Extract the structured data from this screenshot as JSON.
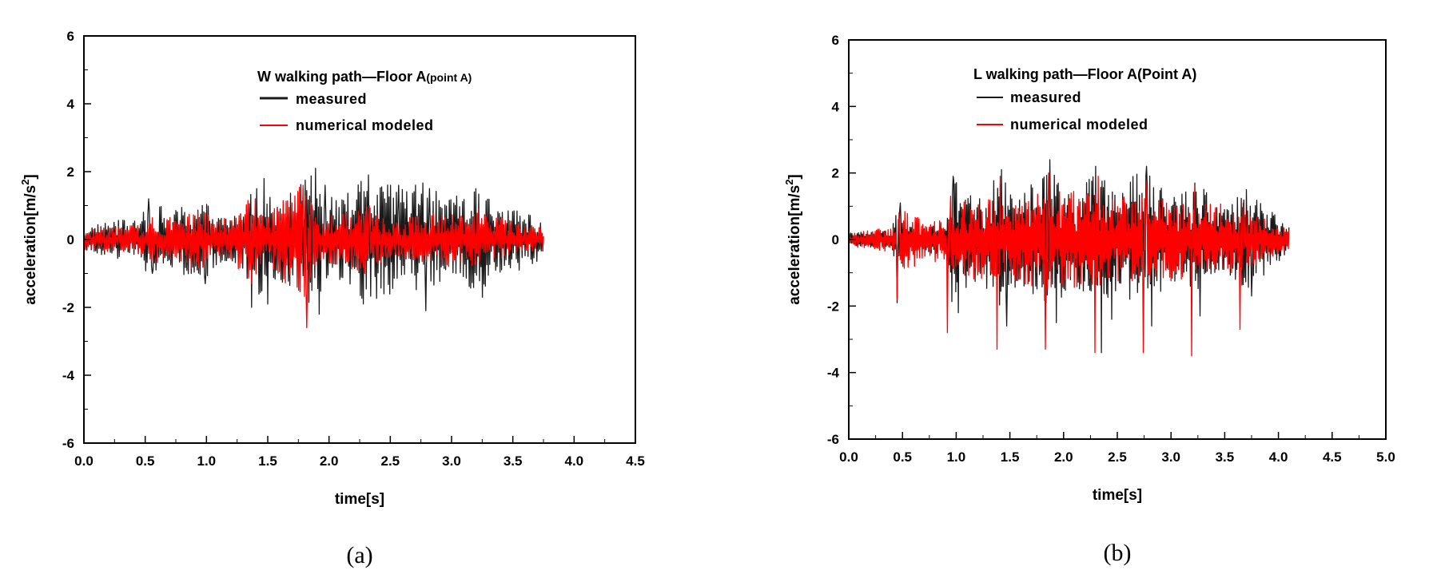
{
  "chart_data": [
    {
      "type": "line",
      "caption": "(a)",
      "legend_title_main": "W walking path—Floor A",
      "legend_title_suffix": "(point A)",
      "xlabel": "time[s]",
      "ylabel": "acceleration[m/s",
      "ylabel_sup": "2",
      "ylabel_close": "]",
      "xlim": [
        0,
        4.5
      ],
      "ylim": [
        -6,
        6
      ],
      "xticks": [
        "0.0",
        "0.5",
        "1.0",
        "1.5",
        "2.0",
        "2.5",
        "3.0",
        "3.5",
        "4.0",
        "4.5"
      ],
      "yticks": [
        "-6",
        "-4",
        "-2",
        "0",
        "2",
        "4",
        "6"
      ],
      "legend_position": "top-right",
      "duration": 3.75,
      "series": [
        {
          "name": "measured",
          "color": "#1a1a1a",
          "envelope": [
            [
              0,
              0.35
            ],
            [
              0.2,
              0.55
            ],
            [
              0.45,
              0.6
            ],
            [
              0.55,
              1.2
            ],
            [
              0.7,
              0.8
            ],
            [
              0.95,
              1.3
            ],
            [
              1.1,
              0.7
            ],
            [
              1.3,
              0.9
            ],
            [
              1.4,
              1.8
            ],
            [
              1.55,
              1.2
            ],
            [
              1.7,
              1.4
            ],
            [
              1.9,
              2.1
            ],
            [
              2.1,
              1.2
            ],
            [
              2.3,
              1.9
            ],
            [
              2.5,
              1.6
            ],
            [
              2.8,
              1.8
            ],
            [
              2.95,
              1.1
            ],
            [
              3.2,
              1.6
            ],
            [
              3.45,
              0.9
            ],
            [
              3.7,
              0.8
            ],
            [
              3.75,
              0.3
            ]
          ],
          "peaks": [
            [
              0.53,
              1.2
            ],
            [
              0.56,
              -1.0
            ],
            [
              0.99,
              -1.3
            ],
            [
              1.37,
              -2.0
            ],
            [
              1.41,
              1.5
            ],
            [
              1.47,
              1.8
            ],
            [
              1.5,
              -1.9
            ],
            [
              1.86,
              -1.5
            ],
            [
              1.89,
              2.1
            ],
            [
              1.92,
              -2.2
            ],
            [
              1.97,
              1.6
            ],
            [
              2.28,
              -1.9
            ],
            [
              2.32,
              1.9
            ],
            [
              2.45,
              -1.6
            ],
            [
              2.57,
              1.6
            ],
            [
              2.79,
              -2.1
            ],
            [
              2.82,
              1.5
            ],
            [
              3.2,
              1.5
            ],
            [
              3.25,
              -1.7
            ],
            [
              3.55,
              -0.9
            ]
          ]
        },
        {
          "name": "numerical modeled",
          "color": "#ff0000",
          "envelope": [
            [
              0,
              0.3
            ],
            [
              0.5,
              0.45
            ],
            [
              0.55,
              0.7
            ],
            [
              0.95,
              0.9
            ],
            [
              1.1,
              0.5
            ],
            [
              1.35,
              1.2
            ],
            [
              1.5,
              0.8
            ],
            [
              1.8,
              1.8
            ],
            [
              1.9,
              0.6
            ],
            [
              2.3,
              1.0
            ],
            [
              2.5,
              0.5
            ],
            [
              2.8,
              0.8
            ],
            [
              3.2,
              0.8
            ],
            [
              3.75,
              0.35
            ]
          ],
          "peaks": [
            [
              1.37,
              -1.3
            ],
            [
              1.4,
              1.2
            ],
            [
              1.79,
              1.6
            ],
            [
              1.82,
              -2.6
            ],
            [
              1.86,
              1.0
            ],
            [
              2.29,
              -1.0
            ],
            [
              2.33,
              1.0
            ],
            [
              3.22,
              0.9
            ]
          ]
        }
      ]
    },
    {
      "type": "line",
      "caption": "(b)",
      "legend_title_main": "L walking path—Floor A(Point A)",
      "legend_title_suffix": "",
      "xlabel": "time[s]",
      "ylabel": "acceleration[m/s",
      "ylabel_sup": "2",
      "ylabel_close": "]",
      "xlim": [
        0,
        5.0
      ],
      "ylim": [
        -6,
        6
      ],
      "xticks": [
        "0.0",
        "0.5",
        "1.0",
        "1.5",
        "2.0",
        "2.5",
        "3.0",
        "3.5",
        "4.0",
        "4.5",
        "5.0"
      ],
      "yticks": [
        "-6",
        "-4",
        "-2",
        "0",
        "2",
        "4",
        "6"
      ],
      "legend_position": "top-right",
      "duration": 4.1,
      "series": [
        {
          "name": "measured",
          "color": "#1a1a1a",
          "envelope": [
            [
              0,
              0.2
            ],
            [
              0.4,
              0.3
            ],
            [
              0.45,
              1.0
            ],
            [
              0.6,
              0.3
            ],
            [
              0.9,
              0.5
            ],
            [
              0.95,
              1.9
            ],
            [
              1.2,
              1.2
            ],
            [
              1.4,
              2.0
            ],
            [
              1.6,
              1.3
            ],
            [
              1.85,
              2.3
            ],
            [
              2.1,
              1.3
            ],
            [
              2.3,
              2.1
            ],
            [
              2.5,
              1.5
            ],
            [
              2.75,
              2.2
            ],
            [
              3.0,
              1.2
            ],
            [
              3.2,
              1.8
            ],
            [
              3.5,
              1.0
            ],
            [
              3.7,
              1.5
            ],
            [
              3.95,
              0.9
            ],
            [
              4.1,
              0.4
            ]
          ],
          "peaks": [
            [
              0.45,
              -1.9
            ],
            [
              0.48,
              1.1
            ],
            [
              0.97,
              1.9
            ],
            [
              1.02,
              -2.2
            ],
            [
              1.42,
              2.1
            ],
            [
              1.47,
              -2.6
            ],
            [
              1.87,
              2.4
            ],
            [
              1.93,
              -2.5
            ],
            [
              2.3,
              2.2
            ],
            [
              2.35,
              -3.4
            ],
            [
              2.45,
              -2.4
            ],
            [
              2.77,
              2.2
            ],
            [
              2.82,
              -2.6
            ],
            [
              3.22,
              1.7
            ],
            [
              3.27,
              -2.3
            ],
            [
              3.7,
              1.5
            ],
            [
              3.75,
              -1.7
            ]
          ]
        },
        {
          "name": "numerical modeled",
          "color": "#ff0000",
          "envelope": [
            [
              0,
              0.2
            ],
            [
              0.45,
              0.4
            ],
            [
              0.5,
              0.9
            ],
            [
              0.9,
              0.6
            ],
            [
              1.0,
              1.2
            ],
            [
              1.4,
              1.2
            ],
            [
              1.85,
              1.5
            ],
            [
              2.3,
              1.4
            ],
            [
              2.75,
              1.3
            ],
            [
              3.2,
              1.2
            ],
            [
              3.65,
              1.0
            ],
            [
              4.1,
              0.3
            ]
          ],
          "peaks": [
            [
              0.45,
              -1.8
            ],
            [
              0.47,
              0.8
            ],
            [
              0.92,
              -2.8
            ],
            [
              0.95,
              1.3
            ],
            [
              1.38,
              -3.3
            ],
            [
              1.41,
              1.9
            ],
            [
              1.83,
              -3.3
            ],
            [
              1.86,
              2.0
            ],
            [
              2.29,
              -3.4
            ],
            [
              2.32,
              1.9
            ],
            [
              2.74,
              -3.4
            ],
            [
              2.77,
              1.7
            ],
            [
              3.19,
              -3.5
            ],
            [
              3.22,
              1.6
            ],
            [
              3.64,
              -2.7
            ],
            [
              3.67,
              1.1
            ]
          ]
        }
      ]
    }
  ]
}
